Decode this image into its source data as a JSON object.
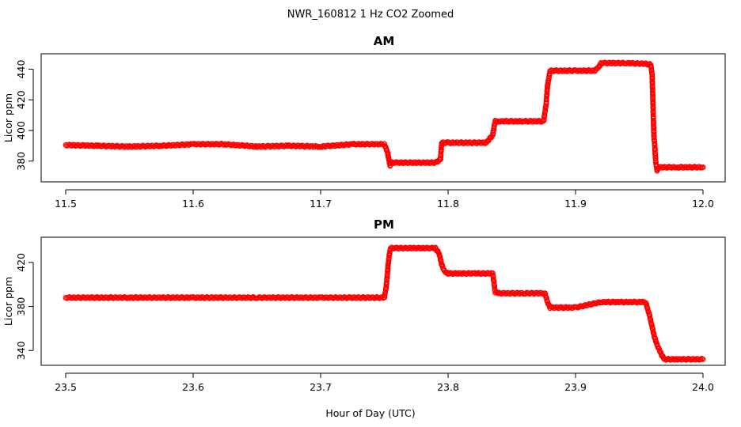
{
  "figure": {
    "title": "NWR_160812  1 Hz CO2 Zoomed",
    "xlabel": "Hour of Day (UTC)",
    "marker_color": "#ff0000"
  },
  "chart_data": [
    {
      "type": "scatter",
      "title": "AM",
      "xlabel": "Hour of Day (UTC)",
      "ylabel": "Licor ppm",
      "xlim": [
        11.5,
        12.0
      ],
      "ylim": [
        368,
        448
      ],
      "xticks": [
        11.5,
        11.6,
        11.7,
        11.8,
        11.9,
        12.0
      ],
      "xtick_labels": [
        "11.5",
        "11.6",
        "11.7",
        "11.8",
        "11.9",
        "12.0"
      ],
      "yticks": [
        380,
        400,
        420,
        440
      ],
      "ytick_labels": [
        "380",
        "400",
        "420",
        "440"
      ],
      "series": [
        {
          "name": "CO2",
          "x": [
            11.5,
            11.525,
            11.55,
            11.575,
            11.6,
            11.625,
            11.65,
            11.675,
            11.7,
            11.725,
            11.75,
            11.7525,
            11.7535,
            11.7545,
            11.755,
            11.76,
            11.775,
            11.79,
            11.794,
            11.795,
            11.8,
            11.815,
            11.83,
            11.835,
            11.836,
            11.837,
            11.84,
            11.86,
            11.875,
            11.877,
            11.878,
            11.879,
            11.88,
            11.9,
            11.915,
            11.918,
            11.92,
            11.94,
            11.955,
            11.959,
            11.96,
            11.9605,
            11.961,
            11.9615,
            11.962,
            11.9625,
            11.963,
            11.964,
            11.966,
            11.98,
            12.0
          ],
          "y": [
            390.5,
            390,
            389.5,
            390,
            391,
            391,
            389.5,
            390,
            389.5,
            391,
            391,
            386,
            381,
            377,
            379,
            379,
            379,
            379,
            381,
            392,
            392,
            392,
            392,
            397,
            402,
            406,
            406,
            406,
            406,
            418,
            429,
            434,
            439,
            439,
            439,
            441,
            444,
            444,
            443.5,
            443,
            437,
            426,
            409,
            396,
            392,
            385,
            379,
            374,
            376,
            376,
            376
          ]
        }
      ]
    },
    {
      "type": "scatter",
      "title": "PM",
      "xlabel": "Hour of Day (UTC)",
      "ylabel": "Licor ppm",
      "xlim": [
        23.5,
        24.0
      ],
      "ylim": [
        328,
        440
      ],
      "xticks": [
        23.5,
        23.6,
        23.7,
        23.8,
        23.9,
        24.0
      ],
      "xtick_labels": [
        "23.5",
        "23.6",
        "23.7",
        "23.8",
        "23.9",
        "24.0"
      ],
      "yticks": [
        340,
        380,
        420
      ],
      "ytick_labels": [
        "340",
        "380",
        "420"
      ],
      "series": [
        {
          "name": "CO2",
          "x": [
            23.5,
            23.55,
            23.6,
            23.65,
            23.7,
            23.75,
            23.7515,
            23.753,
            23.754,
            23.755,
            23.76,
            23.775,
            23.79,
            23.793,
            23.795,
            23.797,
            23.8,
            23.82,
            23.835,
            23.837,
            23.84,
            23.86,
            23.876,
            23.878,
            23.88,
            23.9,
            23.92,
            23.935,
            23.95,
            23.955,
            23.958,
            23.96,
            23.962,
            23.964,
            23.966,
            23.968,
            23.97,
            23.98,
            24.0
          ],
          "y": [
            388,
            388,
            388,
            388,
            388,
            388,
            398,
            418,
            428,
            433,
            433,
            433,
            433,
            428,
            418,
            412,
            410,
            410,
            410,
            393,
            392,
            392,
            392,
            384,
            379,
            379,
            384,
            384,
            384,
            384,
            372,
            362,
            352,
            345,
            340,
            335,
            332,
            332,
            332
          ]
        }
      ]
    }
  ]
}
